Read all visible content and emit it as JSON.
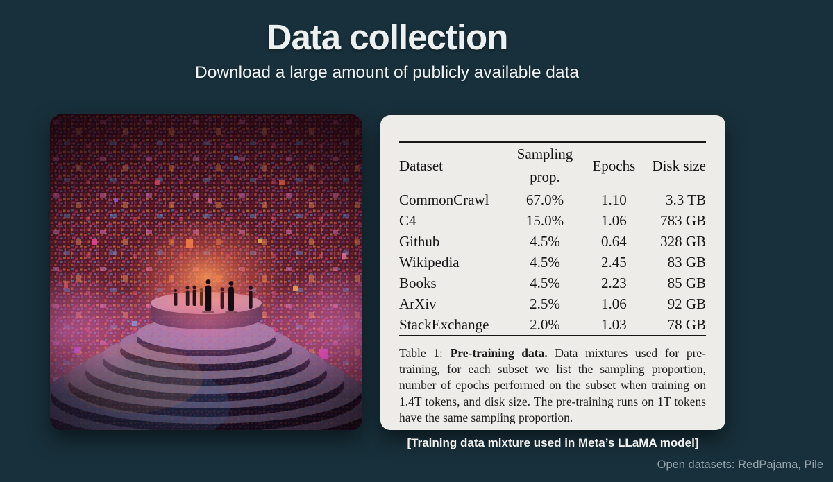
{
  "slide": {
    "title": "Data collection",
    "subtitle": "Download a large amount of publicly available data",
    "image_caption": "[Training data mixture used in Meta’s LLaMA model]",
    "footer_note": "Open datasets: RedPajama, Pile",
    "background_color": "#18303b",
    "accent_colors": {
      "card": "#edece9",
      "footer_text": "#96a4ac"
    }
  },
  "artwork": {
    "description": "digital-data-amphitheater-illustration",
    "palette": [
      "#3a0e1a",
      "#c44a90",
      "#ff9a55",
      "#4a86c8",
      "#e83ab8"
    ]
  },
  "table_card": {
    "columns": [
      "Dataset",
      "Sampling prop.",
      "Epochs",
      "Disk size"
    ],
    "rows": [
      [
        "CommonCrawl",
        "67.0%",
        "1.10",
        "3.3 TB"
      ],
      [
        "C4",
        "15.0%",
        "1.06",
        "783 GB"
      ],
      [
        "Github",
        "4.5%",
        "0.64",
        "328 GB"
      ],
      [
        "Wikipedia",
        "4.5%",
        "2.45",
        "83 GB"
      ],
      [
        "Books",
        "4.5%",
        "2.23",
        "85 GB"
      ],
      [
        "ArXiv",
        "2.5%",
        "1.06",
        "92 GB"
      ],
      [
        "StackExchange",
        "2.0%",
        "1.03",
        "78 GB"
      ]
    ],
    "caption": {
      "label": "Table 1: ",
      "bold": "Pre-training data.",
      "text": " Data mixtures used for pre-training, for each subset we list the sampling proportion, number of epochs performed on the subset when training on 1.4T tokens, and disk size. The pre-training runs on 1T tokens have the same sampling proportion."
    }
  },
  "chart_data": {
    "type": "table",
    "title": "Pre-training data",
    "columns": [
      "Dataset",
      "Sampling prop.",
      "Epochs",
      "Disk size"
    ],
    "rows": [
      [
        "CommonCrawl",
        "67.0%",
        "1.10",
        "3.3 TB"
      ],
      [
        "C4",
        "15.0%",
        "1.06",
        "783 GB"
      ],
      [
        "Github",
        "4.5%",
        "0.64",
        "328 GB"
      ],
      [
        "Wikipedia",
        "4.5%",
        "2.45",
        "83 GB"
      ],
      [
        "Books",
        "4.5%",
        "2.23",
        "85 GB"
      ],
      [
        "ArXiv",
        "2.5%",
        "1.06",
        "92 GB"
      ],
      [
        "StackExchange",
        "2.0%",
        "1.03",
        "78 GB"
      ]
    ]
  }
}
